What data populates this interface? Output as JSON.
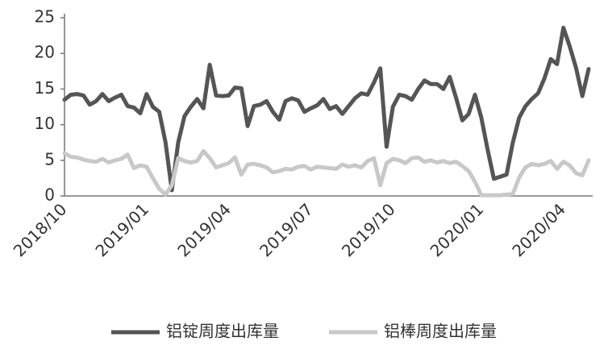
{
  "chart_data": {
    "type": "line",
    "categories": [
      "2018/10",
      null,
      null,
      null,
      null,
      null,
      null,
      null,
      null,
      null,
      null,
      null,
      null,
      "2019/01",
      null,
      null,
      null,
      null,
      null,
      null,
      null,
      null,
      null,
      null,
      null,
      null,
      "2019/04",
      null,
      null,
      null,
      null,
      null,
      null,
      null,
      null,
      null,
      null,
      null,
      null,
      "2019/07",
      null,
      null,
      null,
      null,
      null,
      null,
      null,
      null,
      null,
      null,
      null,
      null,
      "2019/10",
      null,
      null,
      null,
      null,
      null,
      null,
      null,
      null,
      null,
      null,
      null,
      null,
      null,
      "2020/01",
      null,
      null,
      null,
      null,
      null,
      null,
      null,
      null,
      null,
      null,
      null,
      null,
      "2020/04",
      null,
      null,
      null,
      null
    ],
    "series": [
      {
        "name": "铝锭周度出库量",
        "color": "#555555",
        "values": [
          13.5,
          14.2,
          14.3,
          14.1,
          12.8,
          13.3,
          14.3,
          13.3,
          13.8,
          14.2,
          12.6,
          12.4,
          11.6,
          14.3,
          12.5,
          11.8,
          7.5,
          0.8,
          7.5,
          11.2,
          12.5,
          13.6,
          12.3,
          18.4,
          14.1,
          14.0,
          14.1,
          15.2,
          15.1,
          9.8,
          12.6,
          12.8,
          13.3,
          11.8,
          10.7,
          13.3,
          13.7,
          13.4,
          11.8,
          12.3,
          12.7,
          13.6,
          12.2,
          12.6,
          11.5,
          12.6,
          13.7,
          14.4,
          14.2,
          15.9,
          17.9,
          6.9,
          12.5,
          14.2,
          14.0,
          13.5,
          15.0,
          16.2,
          15.7,
          15.7,
          15.0,
          16.7,
          13.8,
          10.6,
          11.5,
          14.2,
          11.0,
          6.5,
          2.4,
          2.7,
          3.0,
          7.5,
          11.0,
          12.6,
          13.6,
          14.4,
          16.5,
          19.2,
          18.5,
          23.6,
          21.0,
          18.0,
          14.0,
          17.8
        ]
      },
      {
        "name": "铝棒周度出库量",
        "color": "#c8c8c8",
        "values": [
          6.0,
          5.5,
          5.4,
          5.1,
          4.9,
          4.8,
          5.2,
          4.7,
          5.0,
          5.2,
          5.8,
          3.9,
          4.3,
          4.1,
          2.5,
          1.0,
          0.2,
          1.5,
          5.3,
          4.9,
          4.7,
          4.9,
          6.3,
          5.3,
          4.0,
          4.3,
          4.6,
          5.4,
          3.0,
          4.4,
          4.5,
          4.3,
          4.0,
          3.3,
          3.5,
          3.8,
          3.7,
          4.1,
          4.2,
          3.7,
          4.1,
          4.0,
          3.9,
          3.8,
          4.4,
          4.1,
          4.3,
          4.0,
          4.9,
          5.3,
          1.5,
          4.6,
          5.2,
          5.0,
          4.6,
          5.3,
          5.4,
          4.8,
          5.0,
          4.7,
          4.9,
          4.6,
          4.8,
          4.2,
          3.5,
          2.0,
          0.1,
          0.1,
          0.1,
          0.1,
          0.2,
          0.3,
          2.6,
          4.0,
          4.5,
          4.3,
          4.5,
          4.9,
          3.8,
          4.8,
          4.3,
          3.2,
          2.9,
          5.0
        ]
      }
    ],
    "ylim": [
      0,
      25
    ],
    "yticks": [
      0,
      5,
      10,
      15,
      20,
      25
    ],
    "grid": false,
    "legend": "bottom"
  }
}
